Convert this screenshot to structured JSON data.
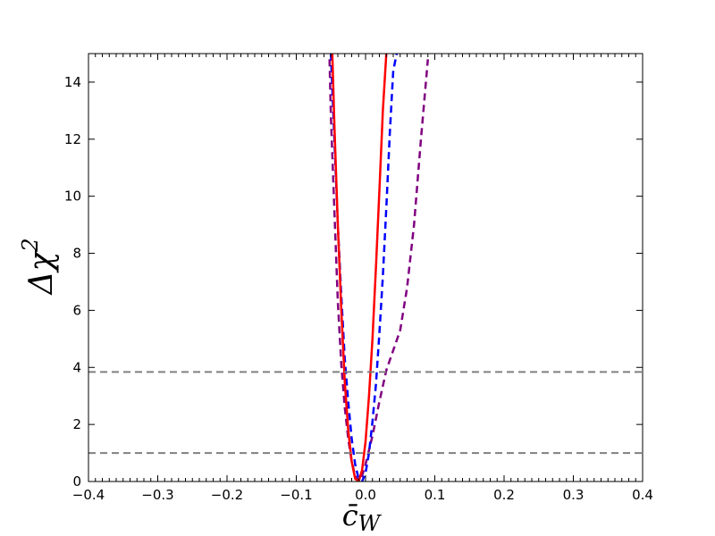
{
  "chart_data": {
    "type": "line",
    "title": "",
    "xlabel": "c̄",
    "xlabel_sub": "W",
    "ylabel": "Δχ",
    "ylabel_sup": "2",
    "xlim": [
      -0.4,
      0.4
    ],
    "ylim": [
      0,
      15
    ],
    "x_ticks": [
      -0.4,
      -0.3,
      -0.2,
      -0.1,
      0.0,
      0.1,
      0.2,
      0.3,
      0.4
    ],
    "x_tick_labels": [
      "−0.4",
      "−0.3",
      "−0.2",
      "−0.1",
      "0.0",
      "0.1",
      "0.2",
      "0.3",
      "0.4"
    ],
    "y_ticks": [
      0,
      2,
      4,
      6,
      8,
      10,
      12,
      14
    ],
    "y_tick_labels": [
      "0",
      "2",
      "4",
      "6",
      "8",
      "10",
      "12",
      "14"
    ],
    "grid": false,
    "legend": "none",
    "hlines": [
      {
        "y": 1.0,
        "color": "#808080",
        "style": "dashed"
      },
      {
        "y": 3.84,
        "color": "#808080",
        "style": "dashed"
      }
    ],
    "series": [
      {
        "color": "#800080",
        "style": "dashed",
        "x": [
          -0.052,
          -0.05,
          -0.045,
          -0.04,
          -0.035,
          -0.03,
          -0.025,
          -0.02,
          -0.015,
          -0.01,
          -0.005,
          0.0,
          0.01,
          0.02,
          0.03,
          0.04,
          0.05,
          0.06,
          0.07,
          0.08,
          0.09
        ],
        "y": [
          14.8,
          12.8,
          9.5,
          6.3,
          4.1,
          2.6,
          1.5,
          0.7,
          0.2,
          0.0,
          0.2,
          0.6,
          1.6,
          2.8,
          3.9,
          4.6,
          5.3,
          6.8,
          9.0,
          12.0,
          14.8
        ]
      },
      {
        "color": "#0000ff",
        "style": "dashed",
        "x": [
          -0.05,
          -0.045,
          -0.04,
          -0.035,
          -0.03,
          -0.025,
          -0.02,
          -0.015,
          -0.01,
          -0.005,
          0.0,
          0.005,
          0.01,
          0.015,
          0.02,
          0.025,
          0.03,
          0.035,
          0.04,
          0.045
        ],
        "y": [
          15.0,
          12.0,
          9.0,
          6.5,
          4.3,
          2.8,
          1.5,
          0.6,
          0.1,
          0.0,
          0.3,
          1.0,
          2.1,
          3.4,
          5.2,
          7.2,
          9.6,
          12.2,
          14.4,
          15.0
        ]
      },
      {
        "color": "#ff0000",
        "style": "solid",
        "x": [
          -0.048,
          -0.045,
          -0.04,
          -0.035,
          -0.03,
          -0.025,
          -0.02,
          -0.015,
          -0.01,
          -0.005,
          0.0,
          0.005,
          0.01,
          0.015,
          0.02,
          0.025,
          0.03
        ],
        "y": [
          15.0,
          12.5,
          9.0,
          6.0,
          3.5,
          1.8,
          0.7,
          0.1,
          0.0,
          0.4,
          1.4,
          3.0,
          5.0,
          7.5,
          10.2,
          13.0,
          15.0
        ]
      }
    ]
  }
}
